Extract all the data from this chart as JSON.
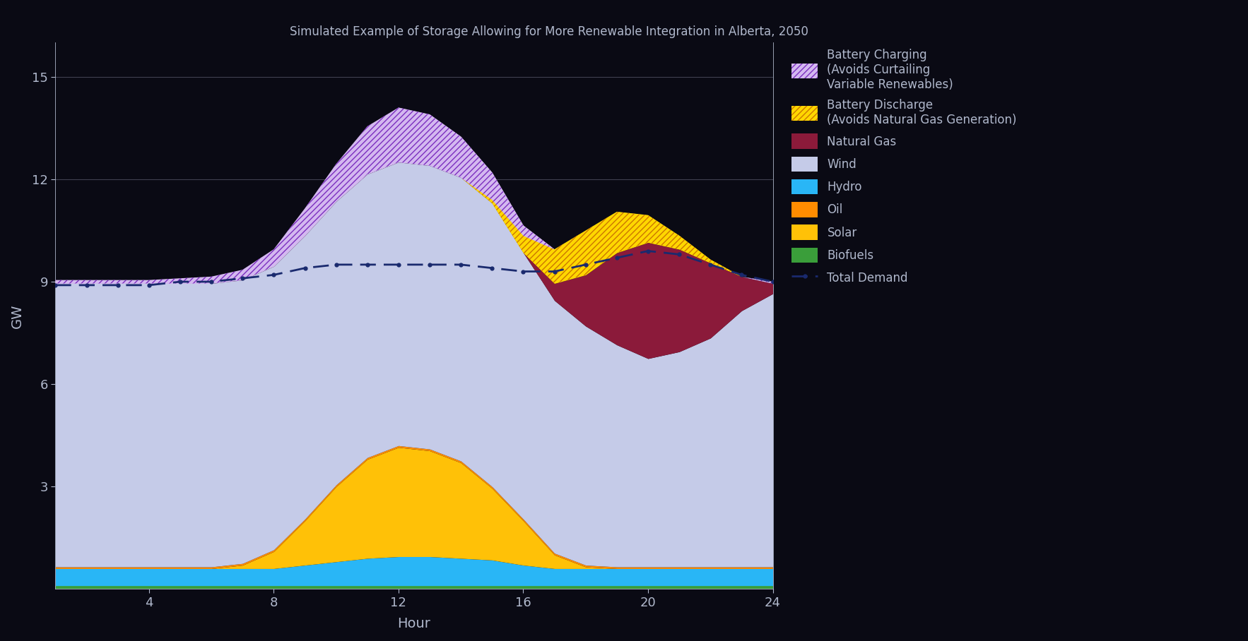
{
  "hours": [
    1,
    2,
    3,
    4,
    5,
    6,
    7,
    8,
    9,
    10,
    11,
    12,
    13,
    14,
    15,
    16,
    17,
    18,
    19,
    20,
    21,
    22,
    23,
    24
  ],
  "biofuels": [
    0.1,
    0.1,
    0.1,
    0.1,
    0.1,
    0.1,
    0.1,
    0.1,
    0.1,
    0.1,
    0.1,
    0.1,
    0.1,
    0.1,
    0.1,
    0.1,
    0.1,
    0.1,
    0.1,
    0.1,
    0.1,
    0.1,
    0.1,
    0.1
  ],
  "hydro": [
    0.5,
    0.5,
    0.5,
    0.5,
    0.5,
    0.5,
    0.5,
    0.5,
    0.6,
    0.7,
    0.8,
    0.85,
    0.85,
    0.8,
    0.75,
    0.6,
    0.5,
    0.5,
    0.5,
    0.5,
    0.5,
    0.5,
    0.5,
    0.5
  ],
  "solar": [
    0.0,
    0.0,
    0.0,
    0.0,
    0.0,
    0.0,
    0.1,
    0.5,
    1.3,
    2.2,
    2.9,
    3.2,
    3.1,
    2.8,
    2.1,
    1.3,
    0.4,
    0.05,
    0.0,
    0.0,
    0.0,
    0.0,
    0.0,
    0.0
  ],
  "oil": [
    0.05,
    0.05,
    0.05,
    0.05,
    0.05,
    0.05,
    0.05,
    0.05,
    0.05,
    0.05,
    0.05,
    0.05,
    0.05,
    0.05,
    0.05,
    0.05,
    0.05,
    0.05,
    0.05,
    0.05,
    0.05,
    0.05,
    0.05,
    0.05
  ],
  "wind": [
    8.3,
    8.3,
    8.3,
    8.3,
    8.3,
    8.3,
    8.3,
    8.3,
    8.3,
    8.3,
    8.3,
    8.3,
    8.3,
    8.3,
    8.3,
    7.8,
    7.4,
    7.0,
    6.5,
    6.1,
    6.3,
    6.7,
    7.5,
    8.0
  ],
  "natural_gas": [
    0.0,
    0.0,
    0.0,
    0.0,
    0.0,
    0.0,
    0.0,
    0.0,
    0.0,
    0.0,
    0.0,
    0.0,
    0.0,
    0.0,
    0.0,
    0.0,
    0.5,
    1.5,
    2.7,
    3.4,
    3.0,
    2.2,
    1.0,
    0.3
  ],
  "battery_discharge": [
    0.0,
    0.0,
    0.0,
    0.0,
    0.0,
    0.0,
    0.0,
    0.0,
    0.0,
    0.0,
    0.0,
    0.0,
    0.0,
    0.0,
    0.1,
    0.5,
    1.0,
    1.3,
    1.2,
    0.8,
    0.4,
    0.1,
    0.0,
    0.0
  ],
  "battery_charging": [
    0.1,
    0.1,
    0.1,
    0.1,
    0.15,
    0.2,
    0.3,
    0.5,
    0.8,
    1.1,
    1.4,
    1.6,
    1.5,
    1.2,
    0.8,
    0.3,
    0.0,
    0.0,
    0.0,
    0.0,
    0.0,
    0.0,
    0.0,
    0.05
  ],
  "total_demand": [
    8.9,
    8.9,
    8.9,
    8.9,
    9.0,
    9.0,
    9.1,
    9.2,
    9.4,
    9.5,
    9.5,
    9.5,
    9.5,
    9.5,
    9.4,
    9.3,
    9.3,
    9.5,
    9.7,
    9.9,
    9.8,
    9.5,
    9.2,
    9.0
  ],
  "colors": {
    "biofuels": "#3a9e3a",
    "hydro": "#29b6f6",
    "solar": "#ffc107",
    "oil": "#ff8c00",
    "wind": "#c5cbe8",
    "natural_gas": "#8b1a3a",
    "battery_discharge_face": "#ffd700",
    "battery_discharge_hatch": "#cc7700",
    "battery_charging_face": "#d4b8f0",
    "battery_charging_hatch": "#7b2fbf"
  },
  "ylabel": "GW",
  "xlabel": "Hour",
  "ylim": [
    0,
    16
  ],
  "yticks": [
    3,
    6,
    9,
    12,
    15
  ],
  "xticks": [
    4,
    8,
    12,
    16,
    20,
    24
  ],
  "title": "Simulated Example of Storage Allowing for More Renewable Integration in Alberta, 2050",
  "legend_labels": {
    "battery_charging": "Battery Charging\n(Avoids Curtailing\nVariable Renewables)",
    "battery_discharge": "Battery Discharge\n(Avoids Natural Gas Generation)",
    "natural_gas": "Natural Gas",
    "wind": "Wind",
    "hydro": "Hydro",
    "oil": "Oil",
    "solar": "Solar",
    "biofuels": "Biofuels",
    "total_demand": "Total Demand"
  },
  "background_color": "#0a0a14",
  "plot_bg_color": "#0a0a14",
  "text_color": "#b0b8cc",
  "grid_color": "#404050",
  "demand_color": "#1a2a6e"
}
